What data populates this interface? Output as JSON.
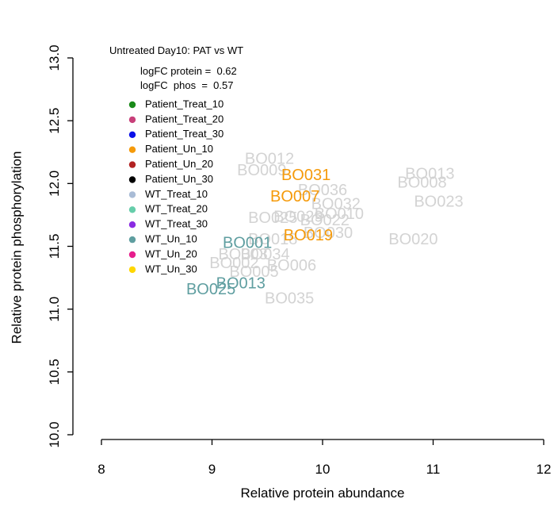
{
  "chart_data": {
    "type": "scatter",
    "title": "",
    "xlabel": "Relative protein abundance",
    "ylabel": "Relative protein phosphorylation",
    "xlim": [
      8,
      12
    ],
    "ylim": [
      10,
      13
    ],
    "xticks": [
      "8",
      "9",
      "10",
      "11",
      "12"
    ],
    "yticks": [
      "10.0",
      "10.5",
      "11.0",
      "11.5",
      "12.0",
      "12.5",
      "13.0"
    ],
    "annotation": {
      "heading": "Untreated Day10: PAT vs WT",
      "protein": "logFC protein =  0.62",
      "phos": "logFC  phos  =  0.57"
    },
    "legend": [
      {
        "label": "Patient_Treat_10",
        "color": "#1a8a1a"
      },
      {
        "label": "Patient_Treat_20",
        "color": "#c8407a"
      },
      {
        "label": "Patient_Treat_30",
        "color": "#0a10e8"
      },
      {
        "label": "Patient_Un_10",
        "color": "#f59a0a"
      },
      {
        "label": "Patient_Un_20",
        "color": "#b22222"
      },
      {
        "label": "Patient_Un_30",
        "color": "#000000"
      },
      {
        "label": "WT_Treat_10",
        "color": "#a9bcd6"
      },
      {
        "label": "WT_Treat_20",
        "color": "#66cdaa"
      },
      {
        "label": "WT_Treat_30",
        "color": "#8a2be2"
      },
      {
        "label": "WT_Un_10",
        "color": "#5f9ea0"
      },
      {
        "label": "WT_Un_20",
        "color": "#e61e8c"
      },
      {
        "label": "WT_Un_30",
        "color": "#ffd700"
      }
    ],
    "points": [
      {
        "label": "BO012",
        "x": 9.52,
        "y": 12.19,
        "color": "#d3d3d3"
      },
      {
        "label": "BO009",
        "x": 9.45,
        "y": 12.1,
        "color": "#d3d3d3"
      },
      {
        "label": "BO013",
        "x": 10.97,
        "y": 12.07,
        "color": "#d3d3d3"
      },
      {
        "label": "BO008",
        "x": 10.9,
        "y": 12.0,
        "color": "#d3d3d3"
      },
      {
        "label": "BO036",
        "x": 10.0,
        "y": 11.94,
        "color": "#d3d3d3"
      },
      {
        "label": "BO023",
        "x": 11.05,
        "y": 11.85,
        "color": "#d3d3d3"
      },
      {
        "label": "BO032",
        "x": 10.12,
        "y": 11.83,
        "color": "#d3d3d3"
      },
      {
        "label": "BO010",
        "x": 10.15,
        "y": 11.75,
        "color": "#d3d3d3"
      },
      {
        "label": "BO025",
        "x": 9.55,
        "y": 11.72,
        "color": "#d3d3d3"
      },
      {
        "label": "BO029",
        "x": 9.78,
        "y": 11.73,
        "color": "#d3d3d3"
      },
      {
        "label": "BO022",
        "x": 10.02,
        "y": 11.7,
        "color": "#d3d3d3"
      },
      {
        "label": "BO030",
        "x": 10.05,
        "y": 11.6,
        "color": "#d3d3d3"
      },
      {
        "label": "BO018",
        "x": 9.55,
        "y": 11.55,
        "color": "#d3d3d3"
      },
      {
        "label": "BO020",
        "x": 10.82,
        "y": 11.55,
        "color": "#d3d3d3"
      },
      {
        "label": "BO034",
        "x": 9.48,
        "y": 11.43,
        "color": "#d3d3d3"
      },
      {
        "label": "BO003",
        "x": 9.28,
        "y": 11.43,
        "color": "#d3d3d3"
      },
      {
        "label": "BO006",
        "x": 9.72,
        "y": 11.34,
        "color": "#d3d3d3"
      },
      {
        "label": "BO002",
        "x": 9.2,
        "y": 11.36,
        "color": "#d3d3d3"
      },
      {
        "label": "BO005",
        "x": 9.38,
        "y": 11.29,
        "color": "#d3d3d3"
      },
      {
        "label": "BO035",
        "x": 9.7,
        "y": 11.08,
        "color": "#d3d3d3"
      },
      {
        "label": "BO031",
        "x": 9.85,
        "y": 12.06,
        "color": "#f59a0a"
      },
      {
        "label": "BO007",
        "x": 9.75,
        "y": 11.89,
        "color": "#f59a0a"
      },
      {
        "label": "BO019",
        "x": 9.87,
        "y": 11.58,
        "color": "#f59a0a"
      },
      {
        "label": "BO001",
        "x": 9.32,
        "y": 11.52,
        "color": "#5f9ea0"
      },
      {
        "label": "BO013",
        "x": 9.26,
        "y": 11.2,
        "color": "#5f9ea0"
      },
      {
        "label": "BO025",
        "x": 8.99,
        "y": 11.15,
        "color": "#5f9ea0"
      }
    ]
  }
}
